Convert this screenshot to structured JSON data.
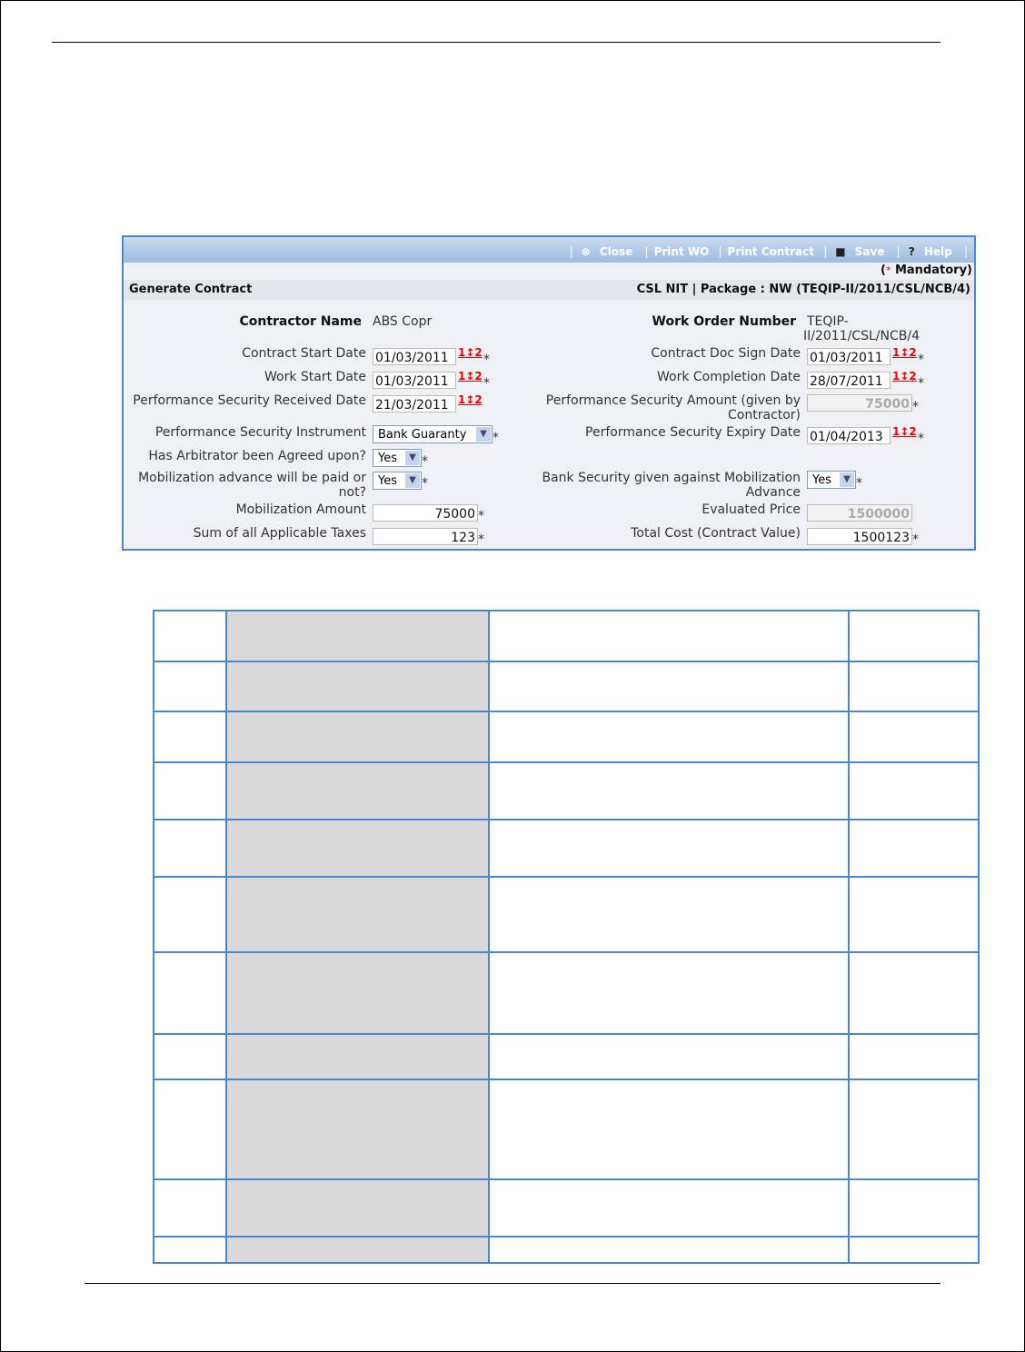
{
  "toolbar": {
    "close": "Close",
    "print_wo": "Print WO",
    "print_contract": "Print Contract",
    "save": "Save",
    "help": "Help"
  },
  "mandatory": "Mandatory",
  "header": {
    "title": "Generate Contract",
    "package": "CSL NIT | Package : NW (TEQIP-II/2011/CSL/NCB/4)"
  },
  "left": {
    "contractor_name_label": "Contractor Name",
    "contractor_name": "ABS Copr",
    "contract_start_label": "Contract Start Date",
    "contract_start": "01/03/2011",
    "work_start_label": "Work Start Date",
    "work_start": "01/03/2011",
    "ps_received_label": "Performance Security Received Date",
    "ps_received": "21/03/2011",
    "ps_instrument_label": "Performance Security Instrument",
    "ps_instrument": "Bank Guaranty",
    "arbitrator_label": "Has Arbitrator been Agreed upon?",
    "arbitrator": "Yes",
    "mob_adv_label1": "Mobilization advance will be paid or",
    "mob_adv_label2": "not?",
    "mob_adv": "Yes",
    "mob_amount_label": "Mobilization Amount",
    "mob_amount": "75000",
    "taxes_label": "Sum of all Applicable Taxes",
    "taxes": "123"
  },
  "right": {
    "wo_number_label": "Work Order Number",
    "wo_number1": "TEQIP-",
    "wo_number2": "II/2011/CSL/NCB/4",
    "doc_sign_label": "Contract Doc Sign Date",
    "doc_sign": "01/03/2011",
    "completion_label": "Work Completion Date",
    "completion": "28/07/2011",
    "ps_amount_label1": "Performance Security Amount (given by",
    "ps_amount_label2": "Contractor)",
    "ps_amount": "75000",
    "ps_expiry_label": "Performance Security Expiry Date",
    "ps_expiry": "01/04/2013",
    "bank_sec_label1": "Bank Security given against Mobilization",
    "bank_sec_label2": "Advance",
    "bank_sec": "Yes",
    "eval_price_label": "Evaluated Price",
    "eval_price": "1500000",
    "total_cost_label": "Total Cost (Contract Value)",
    "total_cost": "1500123"
  },
  "calendar_icon_text": "1↕2",
  "asterisk": "*"
}
